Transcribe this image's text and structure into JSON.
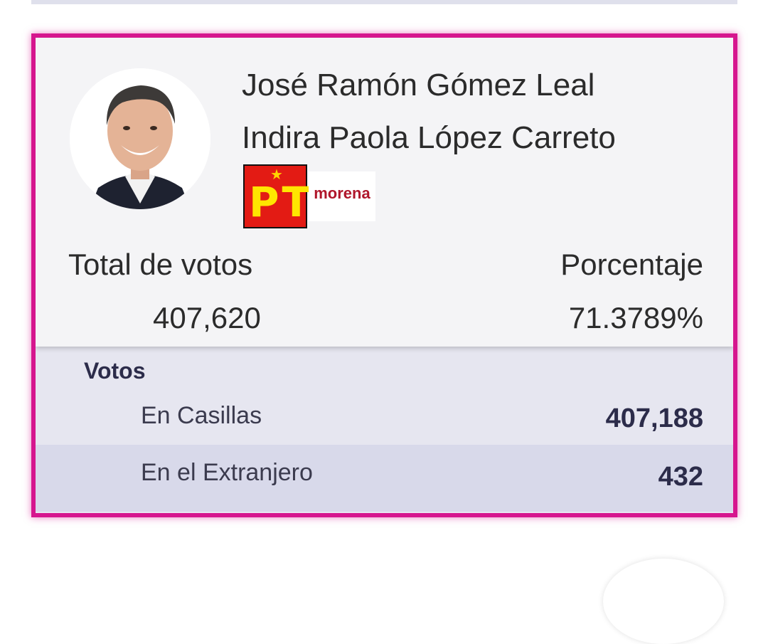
{
  "candidate": {
    "names": [
      "José Ramón Gómez Leal",
      "Indira Paola López Carreto"
    ],
    "photo_icon": "candidate-portrait",
    "parties": {
      "pt": {
        "letters": "PT",
        "star": "★"
      },
      "morena": {
        "label": "morena"
      }
    }
  },
  "totals": {
    "votes_label": "Total de votos",
    "votes_value": "407,620",
    "percent_label": "Porcentaje",
    "percent_value": "71.3789%"
  },
  "breakdown": {
    "title": "Votos",
    "rows": [
      {
        "label": "En Casillas",
        "value": "407,188"
      },
      {
        "label": "En el Extranjero",
        "value": "432"
      }
    ]
  },
  "colors": {
    "accent_border": "#d6168e",
    "pt_red": "#e31b14",
    "pt_yellow": "#ffe600",
    "morena_red": "#b0162b"
  }
}
